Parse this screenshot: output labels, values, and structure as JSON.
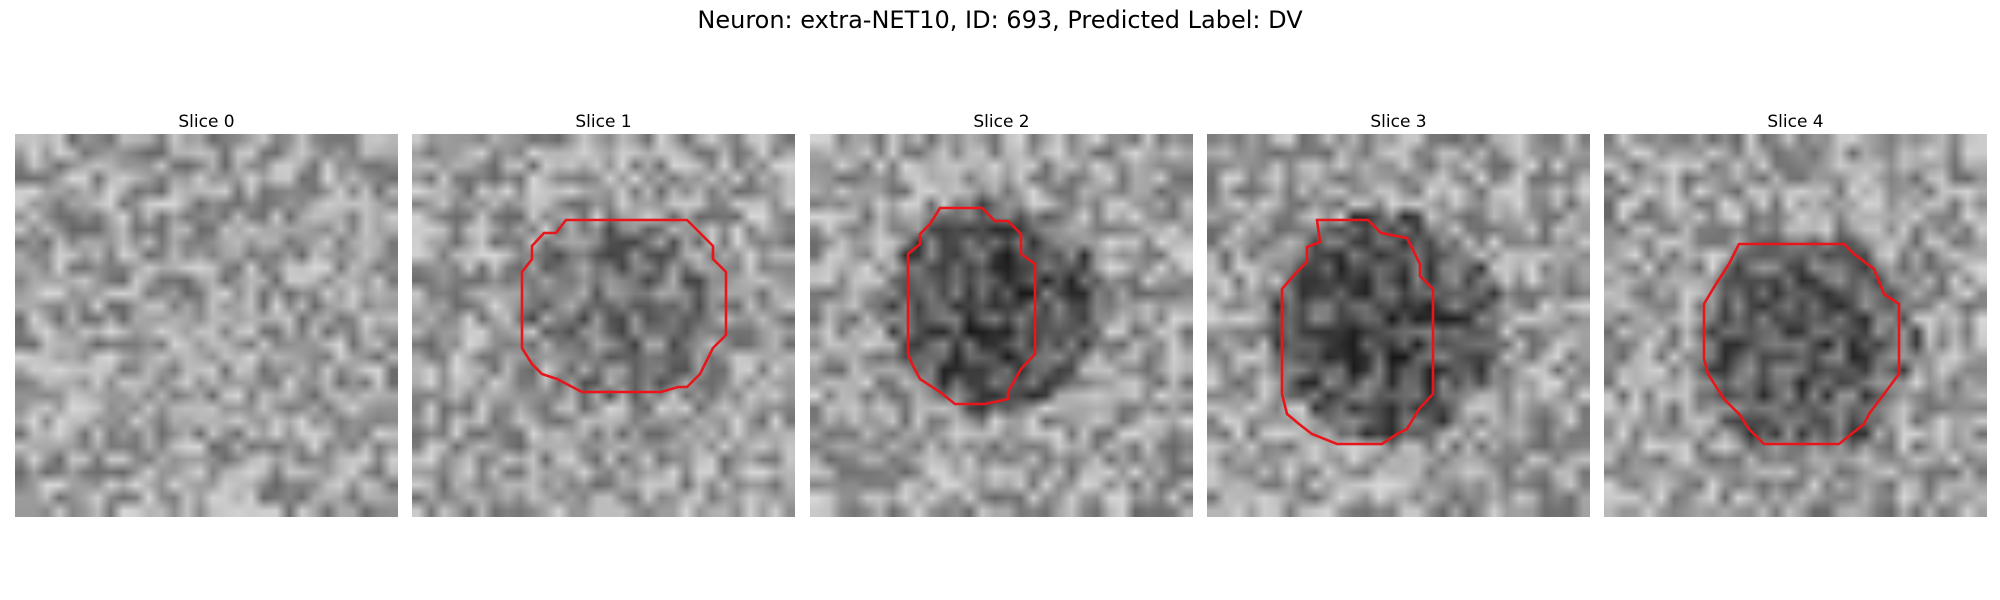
{
  "figure": {
    "title": "Neuron: extra-NET10, ID: 693, Predicted Label: DV"
  },
  "colors": {
    "contour": "#e8161b",
    "background": "#ffffff"
  },
  "panels": [
    {
      "title": "Slice 0",
      "contour": false
    },
    {
      "title": "Slice 1",
      "contour": true
    },
    {
      "title": "Slice 2",
      "contour": true
    },
    {
      "title": "Slice 3",
      "contour": true
    },
    {
      "title": "Slice 4",
      "contour": true
    }
  ]
}
